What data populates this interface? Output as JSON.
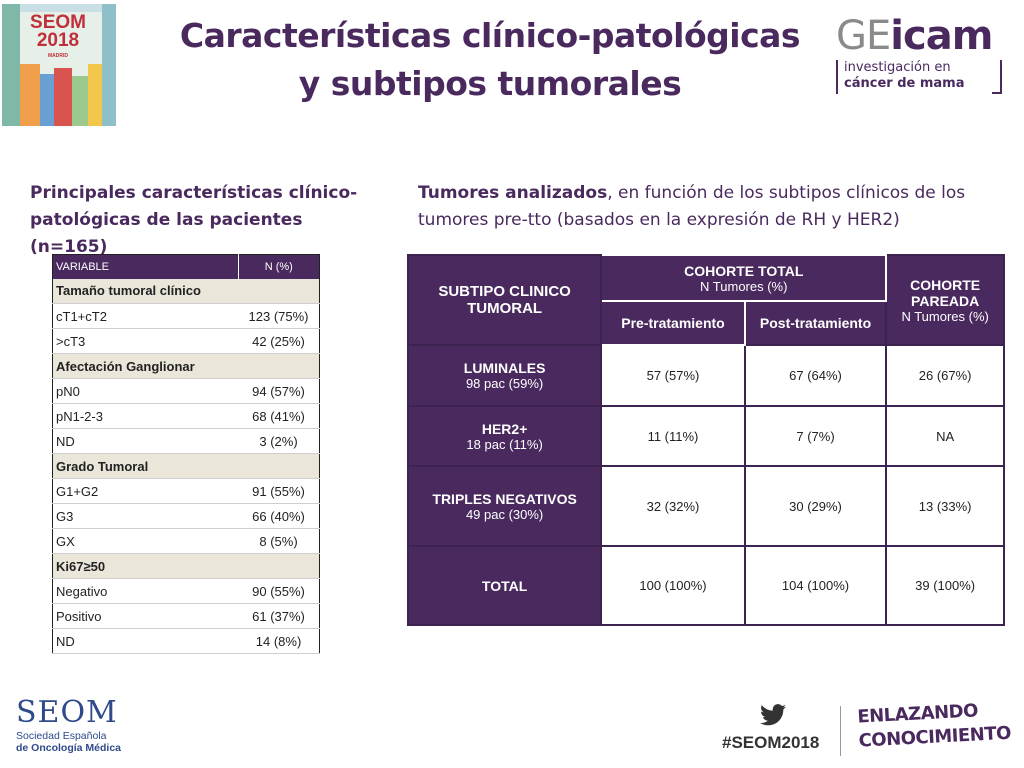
{
  "header": {
    "logo_seom": {
      "line1": "SEOM",
      "line2": "2018",
      "city": "MADRID"
    },
    "title_line1": "Características clínico-patológicas",
    "title_line2": "y subtipos tumorales",
    "logo_geicam": {
      "ge": "GE",
      "icam": "icam",
      "sub1": "investigación en",
      "sub2": "cáncer de mama"
    }
  },
  "left_section": {
    "heading": "Principales características clínico-patológicas de las pacientes (n=165)",
    "table": {
      "header": {
        "variable": "VARIABLE",
        "n": "N (%)"
      },
      "rows": [
        {
          "type": "group",
          "label": "Tamaño tumoral clínico",
          "value": ""
        },
        {
          "type": "row",
          "label": "cT1+cT2",
          "value": "123 (75%)"
        },
        {
          "type": "row",
          "label": ">cT3",
          "value": "42 (25%)"
        },
        {
          "type": "group",
          "label": "Afectación Ganglionar",
          "value": ""
        },
        {
          "type": "row",
          "label": "pN0",
          "value": "94 (57%)"
        },
        {
          "type": "row",
          "label": "pN1-2-3",
          "value": "68 (41%)"
        },
        {
          "type": "row",
          "label": "ND",
          "value": "3 (2%)"
        },
        {
          "type": "group",
          "label": "Grado Tumoral",
          "value": ""
        },
        {
          "type": "row",
          "label": "G1+G2",
          "value": "91 (55%)"
        },
        {
          "type": "row",
          "label": "G3",
          "value": "66 (40%)"
        },
        {
          "type": "row",
          "label": "GX",
          "value": "8 (5%)"
        },
        {
          "type": "group",
          "label": "Ki67≥50",
          "value": ""
        },
        {
          "type": "row",
          "label": "Negativo",
          "value": "90 (55%)"
        },
        {
          "type": "row",
          "label": "Positivo",
          "value": "61 (37%)"
        },
        {
          "type": "row",
          "label": "ND",
          "value": "14 (8%)"
        }
      ]
    }
  },
  "right_section": {
    "heading_bold": "Tumores analizados",
    "heading_rest": ", en función de los subtipos clínicos de los tumores pre-tto (basados en la expresión de RH y HER2)",
    "table": {
      "subtipo_header": "SUBTIPO CLINICO TUMORAL",
      "cohorte_total": "COHORTE TOTAL",
      "cohorte_total_sub": "N Tumores (%)",
      "pre": "Pre-tratamiento",
      "post": "Post-tratamiento",
      "cohorte_pareada": "COHORTE PAREADA",
      "cohorte_pareada_sub": "N Tumores (%)",
      "rows": [
        {
          "name": "LUMINALES",
          "sub": "98 pac (59%)",
          "pre": "57 (57%)",
          "post": "67 (64%)",
          "pareada": "26 (67%)"
        },
        {
          "name": "HER2+",
          "sub": "18 pac (11%)",
          "pre": "11 (11%)",
          "post": "7 (7%)",
          "pareada": "NA"
        },
        {
          "name": "TRIPLES NEGATIVOS",
          "sub": "49 pac (30%)",
          "pre": "32 (32%)",
          "post": "30 (29%)",
          "pareada": "13 (33%)"
        },
        {
          "name": "TOTAL",
          "sub": "",
          "pre": "100 (100%)",
          "post": "104 (100%)",
          "pareada": "39 (100%)"
        }
      ]
    }
  },
  "footer": {
    "seom_big": "SEOM",
    "seom_l1": "Sociedad Española",
    "seom_l2": "de Oncología Médica",
    "hashtag": "#SEOM2018",
    "enlazando_l1": "ENLAZANDO",
    "enlazando_l2": "CONOCIMIENTO"
  },
  "colors": {
    "brand_purple": "#4a2a5e",
    "group_row_bg": "#eae6da",
    "seom_blue": "#2e4a8a",
    "seom_red": "#c0303a"
  },
  "icons": [
    "twitter-icon"
  ]
}
